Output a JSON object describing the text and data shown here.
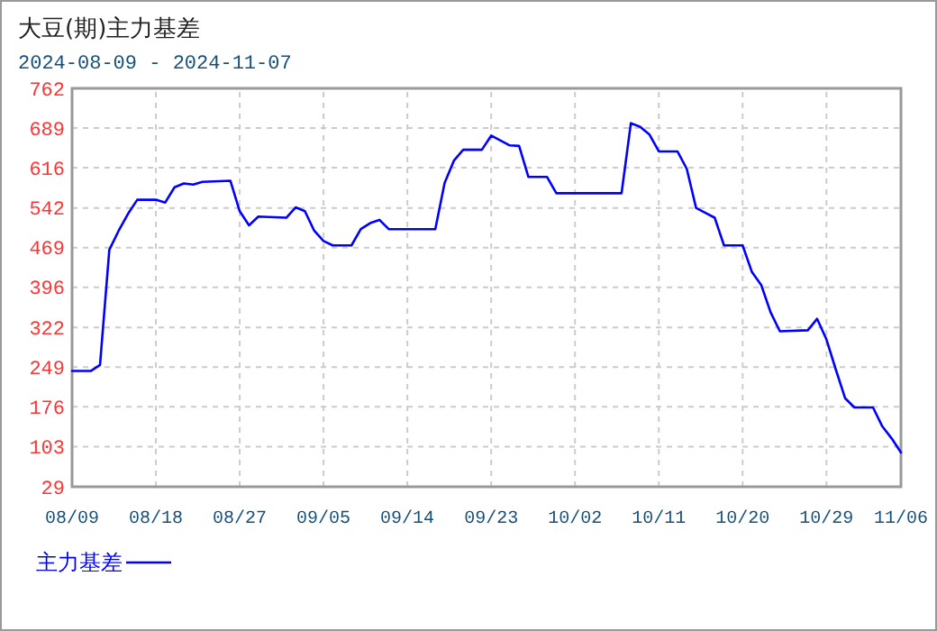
{
  "chart_data": {
    "type": "line",
    "title": "大豆(期)主力基差",
    "subtitle": "2024-08-09 - 2024-11-07",
    "x": [
      "2024-08-09",
      "2024-08-11",
      "2024-08-12",
      "2024-08-13",
      "2024-08-14",
      "2024-08-15",
      "2024-08-16",
      "2024-08-18",
      "2024-08-19",
      "2024-08-20",
      "2024-08-21",
      "2024-08-22",
      "2024-08-23",
      "2024-08-26",
      "2024-08-27",
      "2024-08-28",
      "2024-08-29",
      "2024-09-01",
      "2024-09-02",
      "2024-09-03",
      "2024-09-04",
      "2024-09-05",
      "2024-09-06",
      "2024-09-08",
      "2024-09-09",
      "2024-09-10",
      "2024-09-11",
      "2024-09-12",
      "2024-09-17",
      "2024-09-18",
      "2024-09-19",
      "2024-09-20",
      "2024-09-22",
      "2024-09-23",
      "2024-09-25",
      "2024-09-26",
      "2024-09-27",
      "2024-09-29",
      "2024-09-30",
      "2024-10-07",
      "2024-10-08",
      "2024-10-09",
      "2024-10-10",
      "2024-10-11",
      "2024-10-13",
      "2024-10-14",
      "2024-10-15",
      "2024-10-16",
      "2024-10-17",
      "2024-10-18",
      "2024-10-20",
      "2024-10-21",
      "2024-10-22",
      "2024-10-23",
      "2024-10-24",
      "2024-10-27",
      "2024-10-28",
      "2024-10-29",
      "2024-10-30",
      "2024-10-31",
      "2024-11-01",
      "2024-11-03",
      "2024-11-04",
      "2024-11-05",
      "2024-11-06"
    ],
    "series": [
      {
        "name": "主力基差",
        "color": "#0000ff",
        "values": [
          242,
          242,
          253,
          465,
          500,
          531,
          557,
          557,
          552,
          580,
          587,
          585,
          590,
          592,
          536,
          510,
          526,
          524,
          543,
          536,
          500,
          481,
          473,
          473,
          503,
          514,
          520,
          503,
          503,
          588,
          629,
          649,
          649,
          675,
          657,
          656,
          599,
          599,
          569,
          569,
          698,
          691,
          677,
          646,
          646,
          614,
          542,
          533,
          524,
          473,
          473,
          424,
          400,
          350,
          315,
          317,
          338,
          300,
          245,
          192,
          175,
          175,
          140,
          118,
          92
        ]
      }
    ],
    "xlim": [
      "2024-08-09",
      "2024-11-06"
    ],
    "xticks": [
      {
        "value": "2024-08-09",
        "label": "08/09"
      },
      {
        "value": "2024-08-18",
        "label": "08/18"
      },
      {
        "value": "2024-08-27",
        "label": "08/27"
      },
      {
        "value": "2024-09-05",
        "label": "09/05"
      },
      {
        "value": "2024-09-14",
        "label": "09/14"
      },
      {
        "value": "2024-09-23",
        "label": "09/23"
      },
      {
        "value": "2024-10-02",
        "label": "10/02"
      },
      {
        "value": "2024-10-11",
        "label": "10/11"
      },
      {
        "value": "2024-10-20",
        "label": "10/20"
      },
      {
        "value": "2024-10-29",
        "label": "10/29"
      },
      {
        "value": "2024-11-06",
        "label": "11/06"
      }
    ],
    "ylim": [
      29,
      762
    ],
    "yticks": [
      29,
      103,
      176,
      249,
      322,
      396,
      469,
      542,
      616,
      689,
      762
    ],
    "grid": true,
    "legend": "bottom left",
    "marker": "none",
    "line_style": "solid"
  }
}
